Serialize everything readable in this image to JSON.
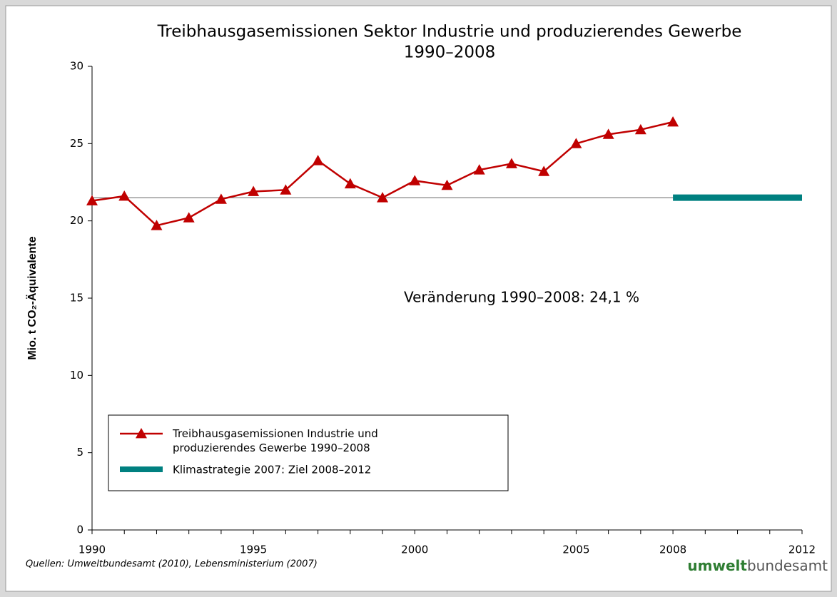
{
  "chart_data": {
    "type": "line",
    "title": [
      "Treibhausgasemissionen Sektor Industrie und produzierendes Gewerbe",
      "1990–2008"
    ],
    "y_label": "Mio. t CO₂-Äquivalente",
    "annotation": "Veränderung 1990–2008: 24,1 %",
    "source": "Quellen: Umweltbundesamt (2010), Lebensministerium (2007)",
    "logo": [
      "umwelt",
      "bundesamt"
    ],
    "xlim": [
      1990,
      2012
    ],
    "xticks": [
      1990,
      1995,
      2000,
      2005,
      2008,
      2012
    ],
    "xminorticks": [
      1991,
      1992,
      1993,
      1994,
      1996,
      1997,
      1998,
      1999,
      2001,
      2002,
      2003,
      2004,
      2006,
      2007,
      2009,
      2010,
      2011
    ],
    "ylim": [
      0,
      30
    ],
    "yticks": [
      0,
      5,
      10,
      15,
      20,
      25,
      30
    ],
    "legend": "lower left",
    "series": [
      {
        "name": "Treibhausgasemissionen Industrie und produzierendes Gewerbe 1990–2008",
        "color": "#c00000",
        "marker": "triangle",
        "x": [
          1990,
          1991,
          1992,
          1993,
          1994,
          1995,
          1996,
          1997,
          1998,
          1999,
          2000,
          2001,
          2002,
          2003,
          2004,
          2005,
          2006,
          2007,
          2008
        ],
        "values": [
          21.3,
          21.6,
          19.7,
          20.2,
          21.4,
          21.9,
          22.0,
          23.9,
          22.4,
          21.5,
          22.6,
          22.3,
          23.3,
          23.7,
          23.2,
          25.0,
          25.6,
          25.9,
          26.4
        ]
      },
      {
        "name": "Klimastrategie 2007: Ziel 2008–2012",
        "color": "#008080",
        "x": [
          2008,
          2012
        ],
        "values": [
          21.5,
          21.5
        ]
      }
    ]
  }
}
